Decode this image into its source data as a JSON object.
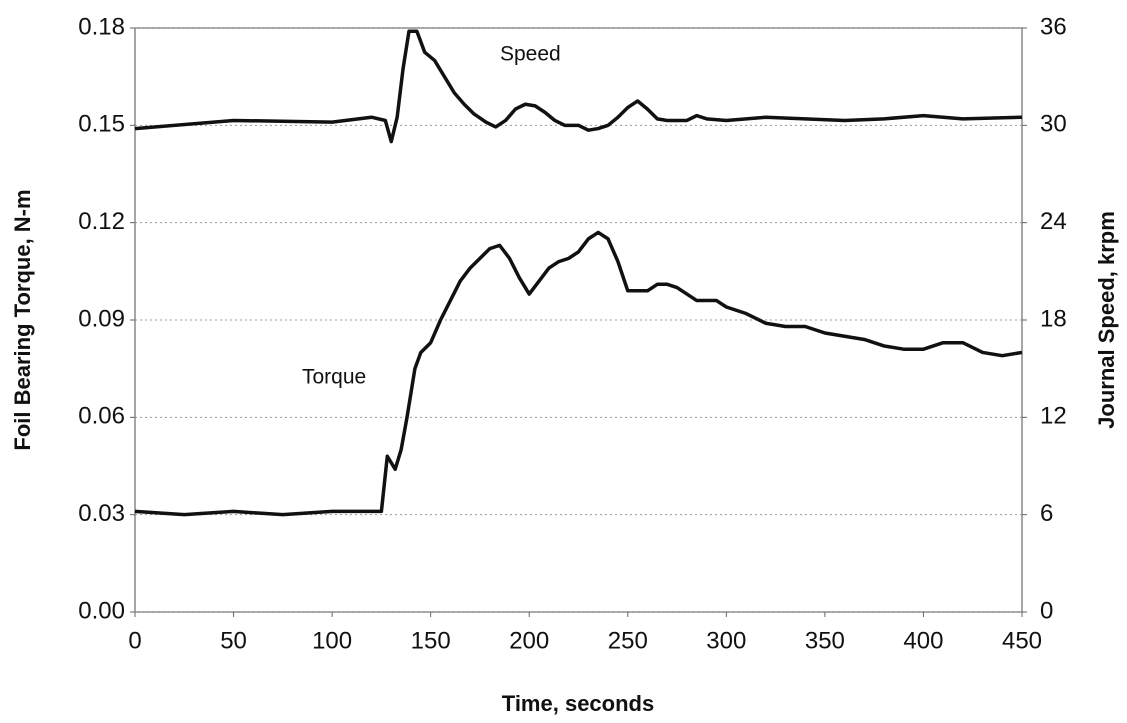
{
  "chart_data": {
    "type": "line",
    "xlabel": "Time, seconds",
    "ylabel": "Foil Bearing Torque, N-m",
    "y2label": "Journal Speed, krpm",
    "annotations": [
      "Speed",
      "Torque"
    ],
    "xlim": [
      0,
      450
    ],
    "xticks": [
      0,
      50,
      100,
      150,
      200,
      250,
      300,
      350,
      400,
      450
    ],
    "ylim": [
      0,
      0.18
    ],
    "yticks": [
      {
        "value": 0,
        "label": "0.00"
      },
      0.03,
      0.06,
      0.09,
      0.12,
      0.15,
      0.18
    ],
    "y2lim": [
      0,
      36
    ],
    "y2ticks": [
      0,
      6,
      12,
      18,
      24,
      30,
      36
    ],
    "grid": true,
    "series": [
      {
        "name": "Torque",
        "color": "#111111",
        "axis": "y",
        "x": [
          0,
          25,
          50,
          75,
          100,
          125,
          128,
          132,
          135,
          138,
          142,
          145,
          150,
          155,
          160,
          165,
          170,
          175,
          180,
          185,
          190,
          195,
          200,
          205,
          210,
          215,
          220,
          225,
          230,
          235,
          240,
          245,
          250,
          255,
          260,
          265,
          270,
          275,
          280,
          285,
          290,
          295,
          300,
          310,
          320,
          330,
          340,
          350,
          360,
          370,
          380,
          390,
          400,
          410,
          420,
          430,
          440,
          450
        ],
        "values": [
          0.031,
          0.03,
          0.031,
          0.03,
          0.031,
          0.031,
          0.048,
          0.044,
          0.05,
          0.06,
          0.075,
          0.08,
          0.083,
          0.09,
          0.096,
          0.102,
          0.106,
          0.109,
          0.112,
          0.113,
          0.109,
          0.103,
          0.098,
          0.102,
          0.106,
          0.108,
          0.109,
          0.111,
          0.115,
          0.117,
          0.115,
          0.108,
          0.099,
          0.099,
          0.099,
          0.101,
          0.101,
          0.1,
          0.098,
          0.096,
          0.096,
          0.096,
          0.094,
          0.092,
          0.089,
          0.088,
          0.088,
          0.086,
          0.085,
          0.084,
          0.082,
          0.081,
          0.081,
          0.083,
          0.083,
          0.08,
          0.079,
          0.08
        ]
      },
      {
        "name": "Speed",
        "color": "#111111",
        "axis": "y2",
        "x": [
          0,
          50,
          100,
          120,
          127,
          130,
          133,
          136,
          139,
          143,
          147,
          152,
          157,
          162,
          167,
          172,
          178,
          183,
          188,
          193,
          198,
          203,
          208,
          213,
          218,
          225,
          230,
          235,
          240,
          245,
          250,
          255,
          260,
          265,
          270,
          280,
          285,
          290,
          300,
          320,
          340,
          360,
          380,
          400,
          420,
          450
        ],
        "values": [
          29.8,
          30.3,
          30.2,
          30.5,
          30.3,
          29.0,
          30.5,
          33.5,
          35.8,
          35.8,
          34.5,
          34.0,
          33.0,
          32.0,
          31.3,
          30.7,
          30.2,
          29.9,
          30.3,
          31.0,
          31.3,
          31.2,
          30.8,
          30.3,
          30.0,
          30.0,
          29.7,
          29.8,
          30.0,
          30.5,
          31.1,
          31.5,
          31.0,
          30.4,
          30.3,
          30.3,
          30.6,
          30.4,
          30.3,
          30.5,
          30.4,
          30.3,
          30.4,
          30.6,
          30.4,
          30.5
        ]
      }
    ]
  }
}
